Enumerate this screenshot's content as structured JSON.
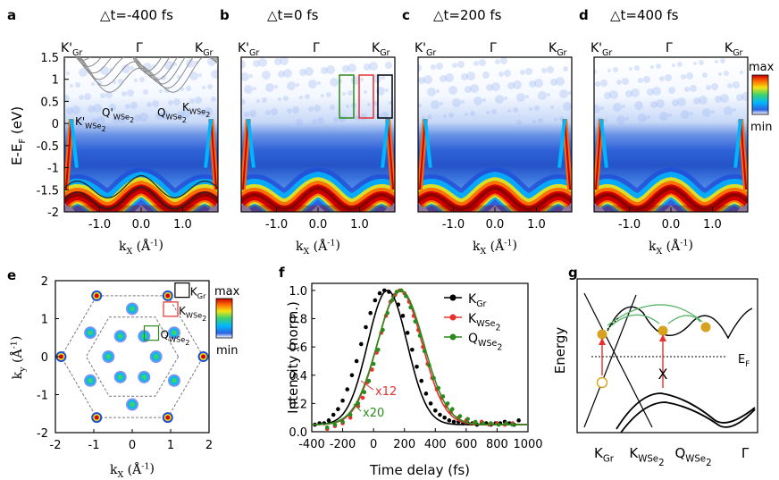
{
  "panels": {
    "a": {
      "letter": "a",
      "title": "△t=-400 fs"
    },
    "b": {
      "letter": "b",
      "title": "△t=0 fs"
    },
    "c": {
      "letter": "c",
      "title": "△t=200 fs"
    },
    "d": {
      "letter": "d",
      "title": "△t=400 fs"
    },
    "e": {
      "letter": "e"
    },
    "f": {
      "letter": "f"
    },
    "g": {
      "letter": "g"
    }
  },
  "arpes": {
    "top_labels": [
      "K'",
      "Gr",
      "Γ",
      "K",
      "Gr"
    ],
    "ylabel": "E-E",
    "ylabel_sub": "F",
    "ylabel_unit": " (eV)",
    "yticks": [
      "1.5",
      "1",
      "0.5",
      "0",
      "-0.5",
      "-1",
      "-1.5",
      "-2"
    ],
    "xticks": [
      "-1.0",
      "0.0",
      "1.0"
    ],
    "xlabel": "k",
    "xlabel_sub": "X",
    "xlabel_unit": " (Å",
    "xlabel_exp": "-1",
    "xlabel_close": ")",
    "band_labels": {
      "k_wse2_prime": "K'",
      "q_wse2_prime": "Q'",
      "q_wse2": "Q",
      "k_wse2": "K",
      "sub": "WSe",
      "sub2": "2"
    },
    "colorbar": {
      "max": "max",
      "min": "min"
    }
  },
  "fermi_map": {
    "yticks": [
      "2",
      "1",
      "0",
      "-1",
      "-2"
    ],
    "xticks": [
      "-2",
      "-1",
      "0",
      "1",
      "2"
    ],
    "ylabel": "k",
    "ylabel_sub": "y",
    "xlabel": "k",
    "xlabel_sub": "X",
    "unit": " (Å",
    "unit_exp": "-1",
    "unit_close": ")",
    "labels": {
      "kgr": "K",
      "kgr_sub": "Gr",
      "kwse2": "K",
      "qwse2": "Q",
      "sub": "WSe",
      "sub2": "2"
    },
    "colorbar": {
      "max": "max",
      "min": "min"
    }
  },
  "chart_data": {
    "type": "scatter",
    "xlabel": "Time delay (fs)",
    "ylabel": "Intensity (norm.)",
    "xlim": [
      -400,
      1000
    ],
    "ylim": [
      0.0,
      1.05
    ],
    "xticks": [
      "-400",
      "-200",
      "0",
      "200",
      "400",
      "600",
      "800",
      "1000"
    ],
    "yticks": [
      "0.0",
      "0.2",
      "0.4",
      "0.6",
      "0.8",
      "1.0"
    ],
    "legend": [
      {
        "name": "K",
        "sub": "Gr",
        "color": "#000000"
      },
      {
        "name": "K",
        "sub": "WSe",
        "sub2": "2",
        "color": "#e8302f"
      },
      {
        "name": "Q",
        "sub": "WSe",
        "sub2": "2",
        "color": "#2a8a1c"
      }
    ],
    "annotations": [
      {
        "text": "x12",
        "color": "#e8302f"
      },
      {
        "text": "x20",
        "color": "#2a8a1c"
      }
    ],
    "series": [
      {
        "color": "#000000",
        "center": 90,
        "width": 230,
        "x": [
          -380,
          -350,
          -320,
          -290,
          -260,
          -230,
          -200,
          -170,
          -140,
          -110,
          -80,
          -50,
          -20,
          10,
          40,
          70,
          100,
          130,
          160,
          190,
          220,
          250,
          280,
          310,
          340,
          370,
          400,
          430,
          460,
          490,
          520,
          550,
          580,
          610,
          640,
          670,
          700,
          730,
          760,
          790,
          820,
          850,
          880,
          910,
          940
        ],
        "y": [
          0.05,
          0.06,
          0.06,
          0.08,
          0.12,
          0.16,
          0.22,
          0.3,
          0.4,
          0.5,
          0.62,
          0.74,
          0.84,
          0.93,
          0.98,
          1.0,
          0.99,
          0.96,
          0.9,
          0.82,
          0.7,
          0.58,
          0.46,
          0.36,
          0.27,
          0.2,
          0.15,
          0.12,
          0.1,
          0.08,
          0.07,
          0.07,
          0.06,
          0.06,
          0.06,
          0.05,
          0.06,
          0.06,
          0.05,
          0.06,
          0.06,
          0.07,
          0.06,
          0.05,
          0.08
        ]
      },
      {
        "color": "#e8302f",
        "center": 170,
        "width": 260,
        "x": [
          -300,
          -250,
          -200,
          -150,
          -100,
          -70,
          -40,
          -10,
          20,
          50,
          80,
          110,
          140,
          170,
          200,
          230,
          260,
          290,
          320,
          350,
          380,
          410,
          440,
          470,
          500,
          550,
          600,
          650,
          700,
          750,
          800,
          850,
          900
        ],
        "y": [
          0.02,
          0.04,
          0.06,
          0.1,
          0.18,
          0.24,
          0.35,
          0.44,
          0.56,
          0.7,
          0.82,
          0.92,
          0.97,
          1.0,
          0.98,
          0.92,
          0.82,
          0.72,
          0.6,
          0.48,
          0.38,
          0.3,
          0.24,
          0.18,
          0.14,
          0.1,
          0.08,
          0.06,
          0.07,
          0.05,
          0.06,
          0.05,
          0.06
        ]
      },
      {
        "color": "#2a8a1c",
        "center": 175,
        "width": 270,
        "x": [
          -300,
          -250,
          -200,
          -150,
          -100,
          -60,
          -30,
          0,
          30,
          60,
          90,
          120,
          150,
          180,
          210,
          240,
          270,
          300,
          330,
          360,
          390,
          420,
          450,
          480,
          510,
          560,
          610,
          660,
          710,
          760,
          810,
          860,
          900
        ],
        "y": [
          0.03,
          0.05,
          0.07,
          0.12,
          0.2,
          0.28,
          0.36,
          0.48,
          0.58,
          0.72,
          0.84,
          0.93,
          0.99,
          1.0,
          0.96,
          0.88,
          0.78,
          0.68,
          0.57,
          0.47,
          0.38,
          0.31,
          0.25,
          0.2,
          0.16,
          0.11,
          0.09,
          0.07,
          0.06,
          0.06,
          0.05,
          0.06,
          0.05
        ]
      }
    ]
  },
  "schematic": {
    "ylabel": "Energy",
    "ef": "E",
    "ef_sub": "F",
    "cross": "X",
    "bottom": [
      {
        "t": "K",
        "sub": "Gr"
      },
      {
        "t": "K",
        "sub": "WSe",
        "sub2": "2"
      },
      {
        "t": "Q",
        "sub": "WSe",
        "sub2": "2"
      },
      {
        "t": "Γ"
      }
    ]
  },
  "colors": {
    "colormap": [
      "#ffffff",
      "#1f4fd8",
      "#00b7ff",
      "#3dd16e",
      "#f2e312",
      "#ff7a00",
      "#d40000",
      "#7a0000"
    ]
  }
}
